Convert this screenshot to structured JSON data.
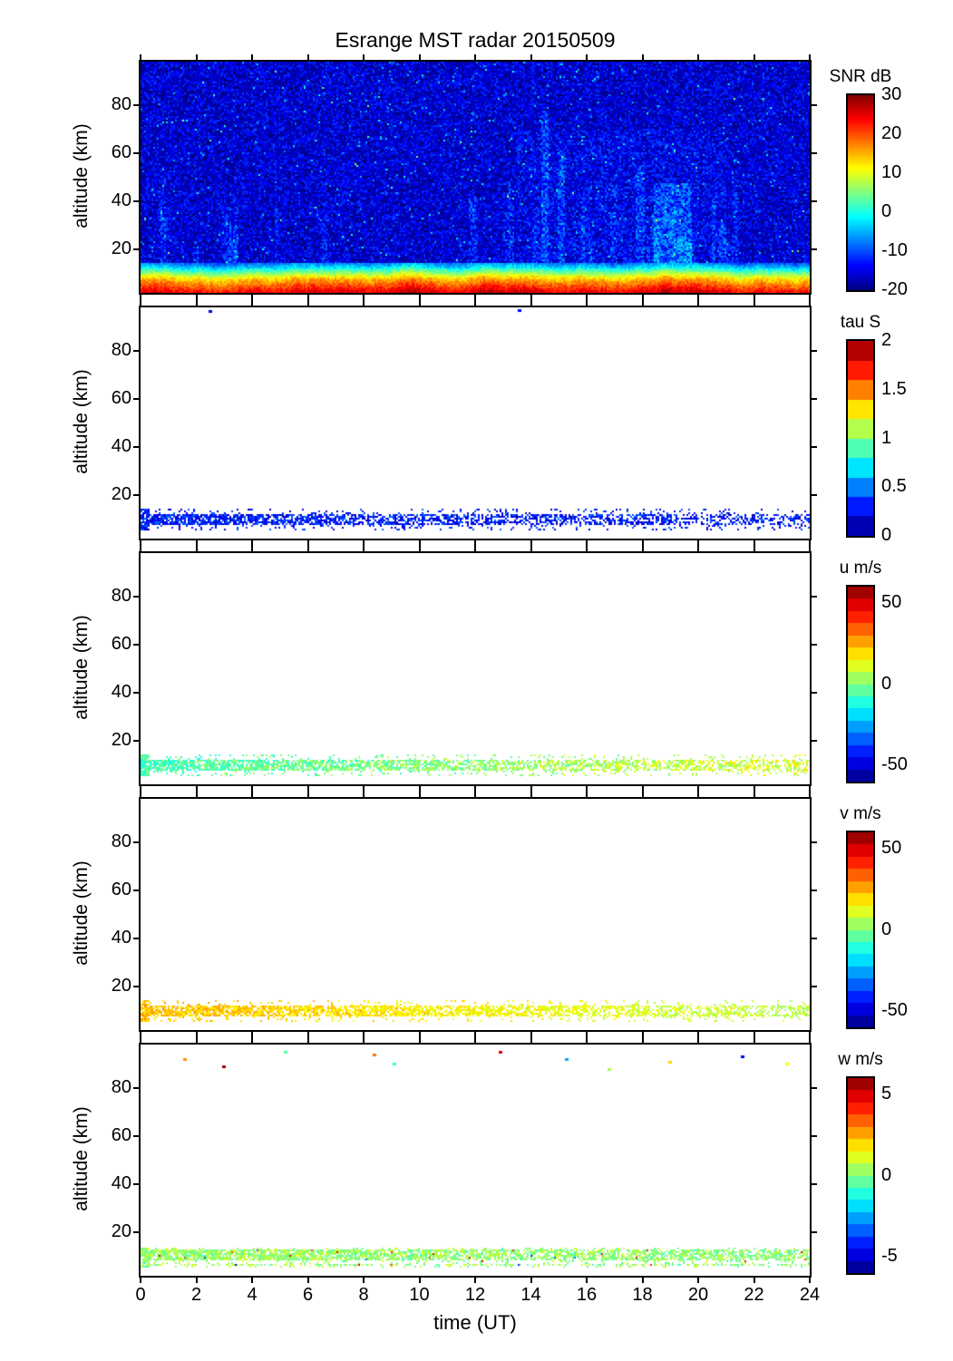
{
  "figure": {
    "title": "Esrange MST radar 20150509",
    "xlabel": "time (UT)",
    "ylabel": "altitude (km)",
    "background_color": "#ffffff",
    "axis_color": "#000000",
    "x_range": [
      0,
      24
    ],
    "x_ticks": [
      0,
      2,
      4,
      6,
      8,
      10,
      12,
      14,
      16,
      18,
      20,
      22,
      24
    ],
    "altitude_range_km": [
      2,
      98
    ],
    "altitude_tick_labels": [
      80,
      60,
      40,
      20
    ]
  },
  "chart_data": [
    {
      "type": "heatmap",
      "id": "snr",
      "colorbar_label": "SNR dB",
      "colormap": "jet",
      "colormap_segments": 64,
      "value_range": [
        -20,
        30
      ],
      "colorbar_ticks": [
        30,
        20,
        10,
        0,
        -10,
        -20
      ],
      "x_range": [
        0,
        24
      ],
      "y_range": [
        2,
        98
      ],
      "noise": {
        "mean_db": -16,
        "spread_db": 5,
        "speckle_prob": 0.03,
        "speckle_boost_db": 8,
        "bright_speckle_prob": 0.004,
        "bright_boost_db": 15
      },
      "layer": {
        "top_km": 15,
        "profile_alt_km": [
          15,
          13,
          12,
          11,
          10,
          9,
          8,
          7,
          6,
          5,
          4,
          3,
          2
        ],
        "profile_snr_db": [
          -8,
          -3,
          1,
          5,
          8,
          12,
          15,
          17,
          19,
          21,
          23,
          25,
          26
        ],
        "time_wobble_db": 3
      },
      "streaks": {
        "random_count": 26,
        "time_range": [
          13,
          21.5
        ],
        "boost_db": 4.5,
        "explicit": [
          [
            14.5,
            0.15,
            78,
            5
          ],
          [
            15.1,
            0.12,
            62,
            4
          ],
          [
            17.9,
            0.15,
            55,
            4
          ],
          [
            19.1,
            0.7,
            48,
            5.5
          ],
          [
            3.4,
            0.1,
            45,
            3
          ],
          [
            6.6,
            0.1,
            40,
            3
          ]
        ]
      },
      "wash": {
        "time_range": [
          13.5,
          21
        ],
        "alt_max_km": 70,
        "boost_db": 1.3
      }
    },
    {
      "type": "heatmap",
      "id": "tau",
      "colorbar_label": "tau S",
      "colormap": "jet",
      "colormap_segments": 10,
      "value_range": [
        0,
        2
      ],
      "colorbar_ticks": [
        2,
        1.5,
        1,
        0.5,
        0
      ],
      "x_range": [
        0,
        24
      ],
      "y_range": [
        2,
        98
      ],
      "band": {
        "core_alt_km": [
          8,
          12.5
        ],
        "halo_alt_km": [
          6,
          14.5
        ],
        "mean_start": 0.3,
        "mean_end": 0.27,
        "spread": 0.18,
        "density_start": 0.85,
        "density_end": 0.4,
        "halo_density": 0.12,
        "edge_block_hours": 0.35
      },
      "dots": [
        [
          2.5,
          96.5,
          0.2
        ],
        [
          13.6,
          97,
          0.25
        ]
      ]
    },
    {
      "type": "heatmap",
      "id": "u",
      "colorbar_label": "u m/s",
      "colormap": "jet",
      "colormap_segments": 16,
      "value_range": [
        -60,
        60
      ],
      "colorbar_ticks": [
        50,
        0,
        -50
      ],
      "x_range": [
        0,
        24
      ],
      "y_range": [
        2,
        98
      ],
      "band": {
        "core_alt_km": [
          8,
          12.5
        ],
        "halo_alt_km": [
          6,
          14.5
        ],
        "mean_start": -7,
        "mean_end": 11,
        "spread": 9,
        "density_start": 0.8,
        "density_end": 0.5,
        "halo_density": 0.12,
        "edge_block_hours": 0.35
      },
      "dots": []
    },
    {
      "type": "heatmap",
      "id": "v",
      "colorbar_label": "v m/s",
      "colormap": "jet",
      "colormap_segments": 16,
      "value_range": [
        -60,
        60
      ],
      "colorbar_ticks": [
        50,
        0,
        -50
      ],
      "x_range": [
        0,
        24
      ],
      "y_range": [
        2,
        98
      ],
      "band": {
        "core_alt_km": [
          8,
          12.5
        ],
        "halo_alt_km": [
          6,
          14.5
        ],
        "mean_start": 23,
        "mean_end": 7,
        "spread": 6,
        "density_start": 0.85,
        "density_end": 0.5,
        "halo_density": 0.12,
        "edge_block_hours": 0.35
      },
      "dots": []
    },
    {
      "type": "heatmap",
      "id": "w",
      "colorbar_label": "w m/s",
      "colormap": "jet",
      "colormap_segments": 16,
      "value_range": [
        -6,
        6
      ],
      "colorbar_ticks": [
        5,
        0,
        -5
      ],
      "x_range": [
        0,
        24
      ],
      "y_range": [
        2,
        98
      ],
      "band": {
        "core_alt_km": [
          9,
          13
        ],
        "halo_alt_km": [
          6,
          14
        ],
        "mean_start": 0.3,
        "mean_end": 0.2,
        "spread": 0.9,
        "density_start": 0.85,
        "density_end": 0.6,
        "halo_density": 0.15,
        "edge_block_hours": 0.35,
        "outlier_prob": 0.015,
        "outlier_mag": 4
      },
      "second_band": {
        "alt_km": [
          6.3,
          7.6
        ],
        "density": 0.45
      },
      "dots": [
        [
          1.6,
          92,
          2.8
        ],
        [
          3.0,
          89,
          5.5
        ],
        [
          5.2,
          95,
          -0.5
        ],
        [
          8.4,
          94,
          3.2
        ],
        [
          9.1,
          90,
          -1
        ],
        [
          12.9,
          95,
          5
        ],
        [
          15.3,
          92,
          -2.5
        ],
        [
          16.8,
          88,
          0.5
        ],
        [
          19.0,
          91,
          2
        ],
        [
          21.6,
          93,
          -4.5
        ],
        [
          23.2,
          90,
          1.5
        ]
      ]
    }
  ]
}
